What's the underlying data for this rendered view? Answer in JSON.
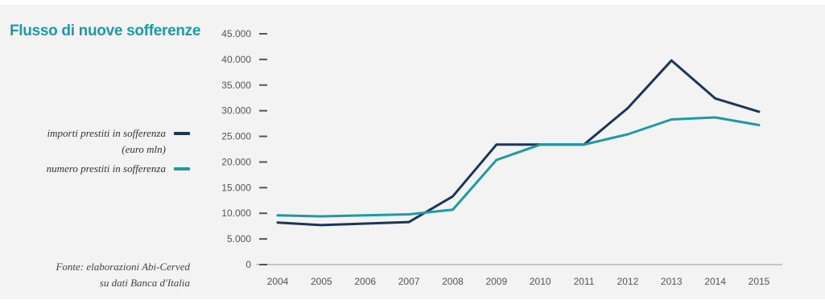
{
  "title": "Flusso di nuove sofferenze",
  "legend": {
    "series1_line1": "importi prestiti in sofferenza",
    "series1_line2": "(euro mln)",
    "series2_line1": "numero prestiti in sofferenza"
  },
  "source": {
    "line1": "Fonte: elaborazioni Abi-Cerved",
    "line2": "su dati Banca d'Italia"
  },
  "colors": {
    "title": "#1f9aa5",
    "series1": "#1c3558",
    "series2": "#1f9aa5"
  },
  "chart_data": {
    "type": "line",
    "title": "Flusso di nuove sofferenze",
    "categories": [
      "2004",
      "2005",
      "2006",
      "2007",
      "2008",
      "2009",
      "2010",
      "2011",
      "2012",
      "2013",
      "2014",
      "2015"
    ],
    "series": [
      {
        "name": "importi prestiti in sofferenza (euro mln)",
        "color": "#1c3558",
        "values": [
          8200,
          7700,
          8000,
          8300,
          13300,
          23400,
          23400,
          23400,
          30500,
          39800,
          32400,
          29800
        ]
      },
      {
        "name": "numero prestiti in sofferenza",
        "color": "#1f9aa5",
        "values": [
          9600,
          9400,
          9600,
          9800,
          10700,
          20400,
          23400,
          23400,
          25400,
          28300,
          28700,
          27200
        ]
      }
    ],
    "yticks": [
      "0",
      "5.000",
      "10.000",
      "15.000",
      "20.000",
      "25.000",
      "30.000",
      "35.000",
      "40.000",
      "45.000"
    ],
    "ylim": [
      0,
      45000
    ],
    "grid": false,
    "legend_position": "left"
  }
}
